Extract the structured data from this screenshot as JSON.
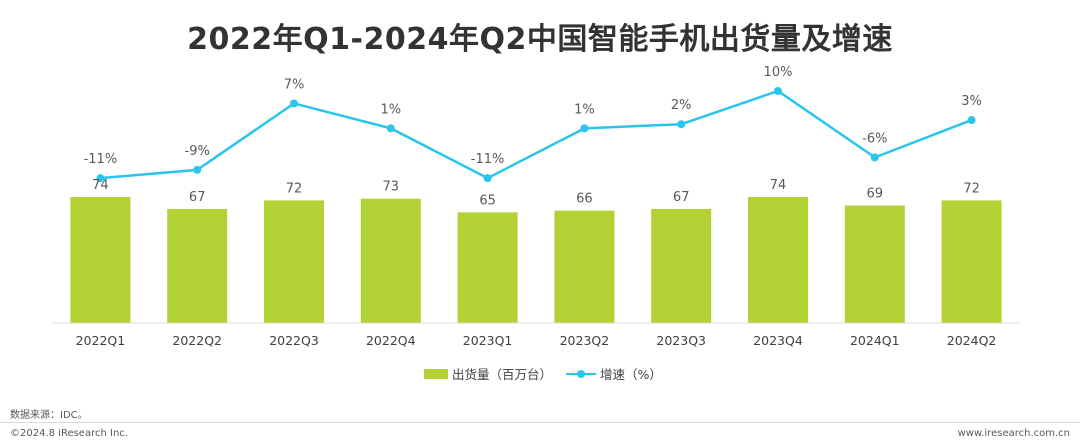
{
  "title": "2022年Q1-2024年Q2中国智能手机出货量及增速",
  "chart_data": {
    "type": "bar+line",
    "categories": [
      "2022Q1",
      "2022Q2",
      "2022Q3",
      "2022Q4",
      "2023Q1",
      "2023Q2",
      "2023Q3",
      "2023Q4",
      "2024Q1",
      "2024Q2"
    ],
    "series": [
      {
        "name": "出货量（百万台）",
        "type": "bar",
        "color": "#b2d235",
        "values": [
          74,
          67,
          72,
          73,
          65,
          66,
          67,
          74,
          69,
          72
        ]
      },
      {
        "name": "增速（%）",
        "type": "line",
        "color": "#29c5ea",
        "values": [
          -11,
          -9,
          7,
          1,
          -11,
          1,
          2,
          10,
          -6,
          3
        ],
        "labels": [
          "-11%",
          "-9%",
          "7%",
          "1%",
          "-11%",
          "1%",
          "2%",
          "10%",
          "-6%",
          "3%"
        ]
      }
    ],
    "grid": false,
    "legend": "bottom"
  },
  "legend": {
    "bar_label": "出货量（百万台）",
    "line_label": "增速（%）"
  },
  "source": "数据来源：IDC。",
  "copyright": "©2024.8 iResearch Inc.",
  "website": "www.iresearch.com.cn"
}
